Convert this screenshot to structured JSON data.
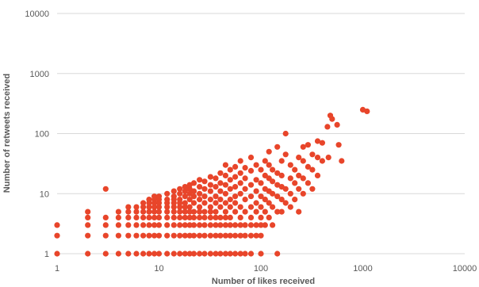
{
  "chart_data": {
    "type": "scatter",
    "title": "",
    "xlabel": "Number of likes received",
    "ylabel": "Number of retweets received",
    "x_scale": "log",
    "y_scale": "log",
    "xlim": [
      1,
      10000
    ],
    "ylim": [
      1,
      10000
    ],
    "x_ticks": [
      "1",
      "10",
      "100",
      "1000",
      "10000"
    ],
    "y_ticks": [
      "1",
      "10",
      "100",
      "1000",
      "10000"
    ],
    "grid": "horizontal",
    "legend": "none",
    "marker_color": "#e8452a",
    "points": [
      [
        1,
        1
      ],
      [
        1,
        2
      ],
      [
        1,
        3
      ],
      [
        2,
        1
      ],
      [
        2,
        2
      ],
      [
        2,
        3
      ],
      [
        2,
        4
      ],
      [
        2,
        5
      ],
      [
        3,
        1
      ],
      [
        3,
        2
      ],
      [
        3,
        3
      ],
      [
        3,
        4
      ],
      [
        3,
        12
      ],
      [
        4,
        1
      ],
      [
        4,
        2
      ],
      [
        4,
        3
      ],
      [
        4,
        4
      ],
      [
        4,
        5
      ],
      [
        5,
        1
      ],
      [
        5,
        2
      ],
      [
        5,
        3
      ],
      [
        5,
        4
      ],
      [
        5,
        5
      ],
      [
        5,
        6
      ],
      [
        6,
        1
      ],
      [
        6,
        2
      ],
      [
        6,
        3
      ],
      [
        6,
        4
      ],
      [
        6,
        5
      ],
      [
        6,
        6
      ],
      [
        7,
        1
      ],
      [
        7,
        2
      ],
      [
        7,
        3
      ],
      [
        7,
        4
      ],
      [
        7,
        5
      ],
      [
        7,
        6
      ],
      [
        7,
        7
      ],
      [
        8,
        1
      ],
      [
        8,
        2
      ],
      [
        8,
        3
      ],
      [
        8,
        4
      ],
      [
        8,
        5
      ],
      [
        8,
        6
      ],
      [
        8,
        7
      ],
      [
        8,
        8
      ],
      [
        9,
        1
      ],
      [
        9,
        2
      ],
      [
        9,
        3
      ],
      [
        9,
        4
      ],
      [
        9,
        5
      ],
      [
        9,
        6
      ],
      [
        9,
        7
      ],
      [
        9,
        8
      ],
      [
        9,
        9
      ],
      [
        10,
        1
      ],
      [
        10,
        2
      ],
      [
        10,
        3
      ],
      [
        10,
        4
      ],
      [
        10,
        5
      ],
      [
        10,
        6
      ],
      [
        10,
        7
      ],
      [
        10,
        8
      ],
      [
        10,
        9
      ],
      [
        12,
        1
      ],
      [
        12,
        2
      ],
      [
        12,
        3
      ],
      [
        12,
        4
      ],
      [
        12,
        5
      ],
      [
        12,
        6
      ],
      [
        12,
        7
      ],
      [
        12,
        8
      ],
      [
        12,
        10
      ],
      [
        14,
        1
      ],
      [
        14,
        2
      ],
      [
        14,
        3
      ],
      [
        14,
        4
      ],
      [
        14,
        5
      ],
      [
        14,
        6
      ],
      [
        14,
        7
      ],
      [
        14,
        8
      ],
      [
        14,
        9
      ],
      [
        14,
        11
      ],
      [
        16,
        1
      ],
      [
        16,
        2
      ],
      [
        16,
        3
      ],
      [
        16,
        4
      ],
      [
        16,
        5
      ],
      [
        16,
        6
      ],
      [
        16,
        7
      ],
      [
        16,
        8
      ],
      [
        16,
        10
      ],
      [
        16,
        12
      ],
      [
        18,
        1
      ],
      [
        18,
        2
      ],
      [
        18,
        3
      ],
      [
        18,
        4
      ],
      [
        18,
        5
      ],
      [
        18,
        6
      ],
      [
        18,
        7
      ],
      [
        18,
        9
      ],
      [
        18,
        11
      ],
      [
        18,
        13
      ],
      [
        20,
        1
      ],
      [
        20,
        2
      ],
      [
        20,
        3
      ],
      [
        20,
        4
      ],
      [
        20,
        5
      ],
      [
        20,
        6
      ],
      [
        20,
        8
      ],
      [
        20,
        10
      ],
      [
        20,
        12
      ],
      [
        20,
        14
      ],
      [
        22,
        1
      ],
      [
        22,
        2
      ],
      [
        22,
        3
      ],
      [
        22,
        4
      ],
      [
        22,
        5
      ],
      [
        22,
        7
      ],
      [
        22,
        9
      ],
      [
        22,
        11
      ],
      [
        22,
        15
      ],
      [
        25,
        1
      ],
      [
        25,
        2
      ],
      [
        25,
        3
      ],
      [
        25,
        4
      ],
      [
        25,
        5
      ],
      [
        25,
        6
      ],
      [
        25,
        8
      ],
      [
        25,
        10
      ],
      [
        25,
        13
      ],
      [
        25,
        17
      ],
      [
        28,
        1
      ],
      [
        28,
        2
      ],
      [
        28,
        3
      ],
      [
        28,
        4
      ],
      [
        28,
        5
      ],
      [
        28,
        7
      ],
      [
        28,
        9
      ],
      [
        28,
        12
      ],
      [
        28,
        16
      ],
      [
        32,
        1
      ],
      [
        32,
        2
      ],
      [
        32,
        3
      ],
      [
        32,
        4
      ],
      [
        32,
        5
      ],
      [
        32,
        6
      ],
      [
        32,
        8
      ],
      [
        32,
        11
      ],
      [
        32,
        14
      ],
      [
        32,
        19
      ],
      [
        36,
        1
      ],
      [
        36,
        2
      ],
      [
        36,
        3
      ],
      [
        36,
        4
      ],
      [
        36,
        5
      ],
      [
        36,
        7
      ],
      [
        36,
        9
      ],
      [
        36,
        13
      ],
      [
        36,
        18
      ],
      [
        40,
        1
      ],
      [
        40,
        2
      ],
      [
        40,
        3
      ],
      [
        40,
        4
      ],
      [
        40,
        6
      ],
      [
        40,
        8
      ],
      [
        40,
        11
      ],
      [
        40,
        15
      ],
      [
        40,
        22
      ],
      [
        45,
        1
      ],
      [
        45,
        2
      ],
      [
        45,
        3
      ],
      [
        45,
        4
      ],
      [
        45,
        5
      ],
      [
        45,
        7
      ],
      [
        45,
        10
      ],
      [
        45,
        14
      ],
      [
        45,
        20
      ],
      [
        45,
        30
      ],
      [
        50,
        1
      ],
      [
        50,
        2
      ],
      [
        50,
        3
      ],
      [
        50,
        4
      ],
      [
        50,
        6
      ],
      [
        50,
        8
      ],
      [
        50,
        12
      ],
      [
        50,
        17
      ],
      [
        50,
        25
      ],
      [
        56,
        1
      ],
      [
        56,
        2
      ],
      [
        56,
        3
      ],
      [
        56,
        5
      ],
      [
        56,
        7
      ],
      [
        56,
        9
      ],
      [
        56,
        13
      ],
      [
        56,
        19
      ],
      [
        56,
        28
      ],
      [
        63,
        1
      ],
      [
        63,
        2
      ],
      [
        63,
        3
      ],
      [
        63,
        4
      ],
      [
        63,
        6
      ],
      [
        63,
        10
      ],
      [
        63,
        15
      ],
      [
        63,
        22
      ],
      [
        63,
        35
      ],
      [
        70,
        1
      ],
      [
        70,
        2
      ],
      [
        70,
        3
      ],
      [
        70,
        5
      ],
      [
        70,
        8
      ],
      [
        70,
        12
      ],
      [
        70,
        18
      ],
      [
        70,
        27
      ],
      [
        80,
        1
      ],
      [
        80,
        2
      ],
      [
        80,
        3
      ],
      [
        80,
        4
      ],
      [
        80,
        6
      ],
      [
        80,
        9
      ],
      [
        80,
        14
      ],
      [
        80,
        24
      ],
      [
        80,
        40
      ],
      [
        90,
        2
      ],
      [
        90,
        3
      ],
      [
        90,
        5
      ],
      [
        90,
        7
      ],
      [
        90,
        11
      ],
      [
        90,
        17
      ],
      [
        90,
        30
      ],
      [
        100,
        1
      ],
      [
        100,
        2
      ],
      [
        100,
        3
      ],
      [
        100,
        4
      ],
      [
        100,
        6
      ],
      [
        100,
        9
      ],
      [
        100,
        15
      ],
      [
        100,
        25
      ],
      [
        110,
        3
      ],
      [
        110,
        5
      ],
      [
        110,
        8
      ],
      [
        110,
        12
      ],
      [
        110,
        20
      ],
      [
        110,
        35
      ],
      [
        120,
        4
      ],
      [
        120,
        7
      ],
      [
        120,
        11
      ],
      [
        120,
        18
      ],
      [
        120,
        30
      ],
      [
        120,
        50
      ],
      [
        130,
        3
      ],
      [
        130,
        6
      ],
      [
        130,
        10
      ],
      [
        130,
        16
      ],
      [
        130,
        25
      ],
      [
        145,
        1
      ],
      [
        145,
        5
      ],
      [
        145,
        9
      ],
      [
        145,
        14
      ],
      [
        145,
        22
      ],
      [
        145,
        60
      ],
      [
        160,
        5
      ],
      [
        160,
        8
      ],
      [
        160,
        13
      ],
      [
        160,
        20
      ],
      [
        160,
        35
      ],
      [
        175,
        7
      ],
      [
        175,
        12
      ],
      [
        175,
        45
      ],
      [
        175,
        100
      ],
      [
        195,
        6
      ],
      [
        195,
        10
      ],
      [
        195,
        18
      ],
      [
        195,
        30
      ],
      [
        215,
        8
      ],
      [
        215,
        15
      ],
      [
        215,
        25
      ],
      [
        235,
        5
      ],
      [
        235,
        12
      ],
      [
        235,
        20
      ],
      [
        235,
        40
      ],
      [
        260,
        10
      ],
      [
        260,
        18
      ],
      [
        260,
        35
      ],
      [
        260,
        60
      ],
      [
        290,
        15
      ],
      [
        290,
        28
      ],
      [
        290,
        65
      ],
      [
        320,
        12
      ],
      [
        320,
        25
      ],
      [
        320,
        45
      ],
      [
        360,
        20
      ],
      [
        360,
        40
      ],
      [
        360,
        75
      ],
      [
        400,
        35
      ],
      [
        400,
        70
      ],
      [
        450,
        130
      ],
      [
        460,
        40
      ],
      [
        480,
        200
      ],
      [
        500,
        175
      ],
      [
        560,
        140
      ],
      [
        580,
        65
      ],
      [
        620,
        35
      ],
      [
        1000,
        250
      ],
      [
        1100,
        235
      ]
    ]
  }
}
